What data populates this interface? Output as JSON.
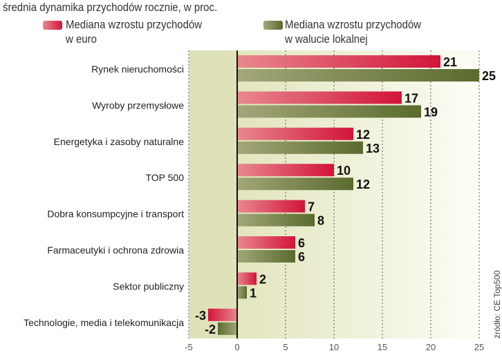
{
  "chart_data": {
    "type": "bar",
    "orientation": "horizontal",
    "title": "średnia dynamika przychodów rocznie, w proc.",
    "categories": [
      "Rynek nieruchomości",
      "Wyroby przemysłowe",
      "Energetyka i zasoby naturalne",
      "TOP 500",
      "Dobra konsumpcyjne i transport",
      "Farmaceutyki i ochrona zdrowia",
      "Sektor publiczny",
      "Technologie, media i telekomunikacja"
    ],
    "series": [
      {
        "name": "Mediana wzrostu przychodów w euro",
        "legend_lines": [
          "Mediana wzrostu przychodów",
          "w euro"
        ],
        "color": "#d2143a",
        "values": [
          21,
          17,
          12,
          10,
          7,
          6,
          2,
          -3
        ]
      },
      {
        "name": "Mediana wzrostu przychodów w walucie lokalnej",
        "legend_lines": [
          "Mediana wzrostu przychodów",
          "w walucie lokalnej"
        ],
        "color": "#5a6b2e",
        "values": [
          25,
          19,
          13,
          12,
          8,
          6,
          1,
          -2
        ]
      }
    ],
    "xlim": [
      -5,
      25
    ],
    "xticks": [
      -5,
      0,
      5,
      10,
      15,
      20,
      25
    ],
    "grid": true,
    "legend_position": "top",
    "source": "źródło: CE Top500"
  }
}
